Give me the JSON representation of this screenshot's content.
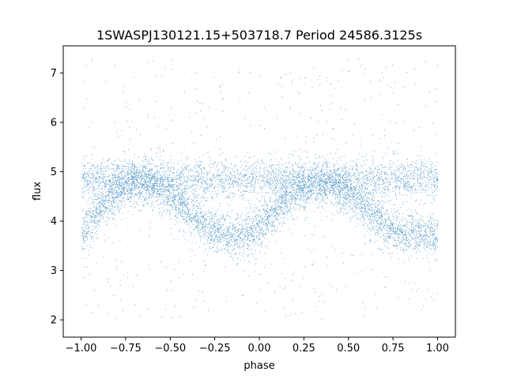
{
  "chart_data": {
    "type": "scatter",
    "title": "1SWASPJ130121.15+503718.7 Period 24586.3125s",
    "xlabel": "phase",
    "ylabel": "flux",
    "xlim": [
      -1.1,
      1.1
    ],
    "ylim": [
      1.65,
      7.55
    ],
    "x_ticks": [
      -1.0,
      -0.75,
      -0.5,
      -0.25,
      0.0,
      0.25,
      0.5,
      0.75,
      1.0
    ],
    "x_tick_labels": [
      "−1.00",
      "−0.75",
      "−0.50",
      "−0.25",
      "0.00",
      "0.25",
      "0.50",
      "0.75",
      "1.00"
    ],
    "y_ticks": [
      2,
      3,
      4,
      5,
      6,
      7
    ],
    "y_tick_labels": [
      "2",
      "3",
      "4",
      "5",
      "6",
      "7"
    ],
    "grid": false,
    "point_color": "#1f77b4",
    "phase_range": [
      -1.0,
      1.0
    ],
    "series": [
      {
        "description_key": "upper_sinusoid",
        "x": [
          -1.0,
          -0.9,
          -0.8,
          -0.7,
          -0.6,
          -0.5,
          -0.4,
          -0.3,
          -0.2,
          -0.1,
          0.0,
          0.1,
          0.2,
          0.3,
          0.4,
          0.5,
          0.6,
          0.7,
          0.8,
          0.9,
          1.0
        ],
        "y": [
          3.75,
          4.25,
          4.6,
          4.8,
          4.75,
          4.5,
          4.2,
          3.9,
          3.75,
          3.7,
          3.85,
          4.3,
          4.6,
          4.75,
          4.75,
          4.55,
          4.25,
          3.95,
          3.8,
          3.72,
          3.75
        ]
      },
      {
        "description_key": "flat_band",
        "x": [
          -1.0,
          -0.5,
          0.0,
          0.5,
          1.0
        ],
        "y": [
          4.85,
          4.85,
          4.85,
          4.85,
          4.85
        ]
      }
    ]
  }
}
